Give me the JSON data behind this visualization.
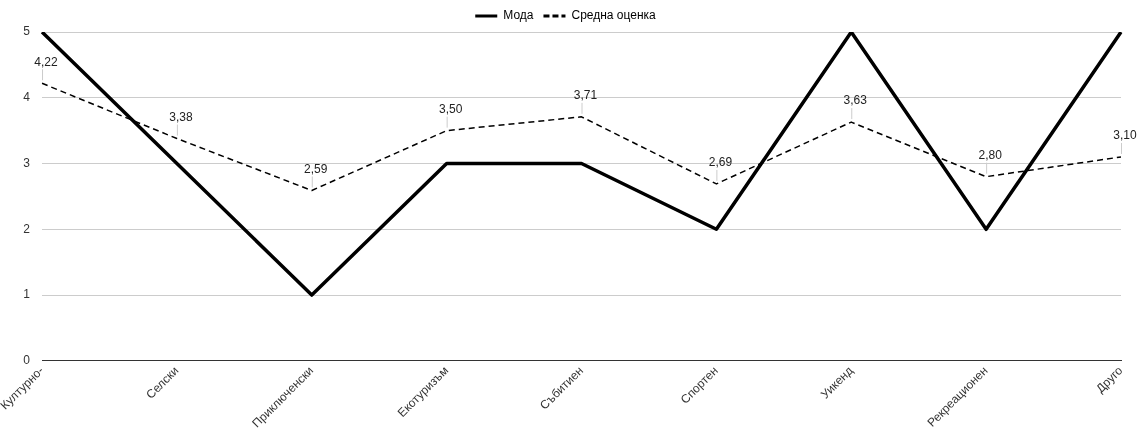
{
  "chart_data": {
    "type": "line",
    "categories": [
      "Културно-",
      "Селски",
      "Приключенски",
      "Екотуризъм",
      "Събитиен",
      "Спортен",
      "Уикенд",
      "Рекреационен",
      "Друго"
    ],
    "series": [
      {
        "name": "Мода",
        "color": "#000000",
        "line_style": "solid",
        "values": [
          5,
          3,
          1,
          3,
          3,
          2,
          5,
          2,
          5
        ]
      },
      {
        "name": "Средна оценка",
        "color": "#000000",
        "line_style": "dashed",
        "values": [
          4.22,
          3.38,
          2.59,
          3.5,
          3.71,
          2.69,
          3.63,
          2.8,
          3.1
        ],
        "value_labels": [
          "4,22",
          "3,38",
          "2,59",
          "3,50",
          "3,71",
          "2,69",
          "3,63",
          "2,80",
          "3,10"
        ]
      }
    ],
    "ylim": [
      0,
      5
    ],
    "yticks": [
      0,
      1,
      2,
      3,
      4,
      5
    ],
    "grid": "y",
    "legend": "top",
    "marker": "none"
  }
}
